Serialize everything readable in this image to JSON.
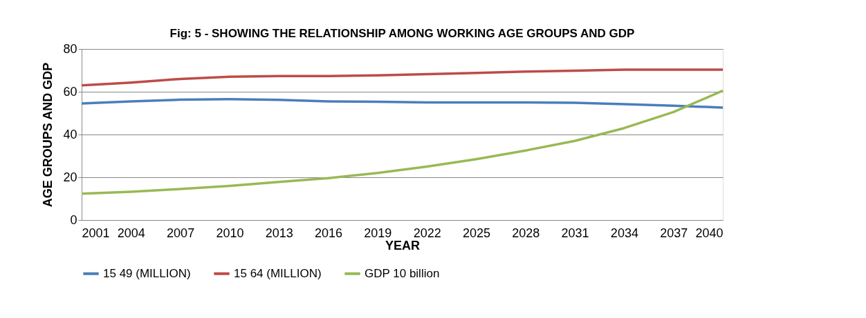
{
  "chart_data": {
    "type": "line",
    "title": "Fig: 5 - SHOWING THE RELATIONSHIP AMONG WORKING AGE GROUPS AND GDP",
    "xlabel": "YEAR",
    "ylabel": "AGE GROUPS AND GDP",
    "x": [
      2001,
      2004,
      2007,
      2010,
      2013,
      2016,
      2019,
      2022,
      2025,
      2028,
      2031,
      2034,
      2037,
      2040
    ],
    "series": [
      {
        "name": "15 49 (MILLION)",
        "color": "#4a7ebb",
        "values": [
          54.5,
          55.5,
          56.3,
          56.5,
          56.2,
          55.5,
          55.3,
          55,
          55,
          55,
          54.8,
          54.2,
          53.5,
          52.6
        ]
      },
      {
        "name": "15 64 (MILLION)",
        "color": "#be4b48",
        "values": [
          63,
          64.3,
          66,
          67,
          67.3,
          67.3,
          67.7,
          68.2,
          68.8,
          69.4,
          69.8,
          70.3,
          70.3,
          70.3
        ]
      },
      {
        "name": "GDP 10 billion",
        "color": "#98b954",
        "values": [
          12.3,
          13.2,
          14.5,
          16,
          17.8,
          19.6,
          22,
          25,
          28.5,
          32.5,
          37,
          43,
          50.5,
          60.5
        ]
      }
    ],
    "xlim": [
      2001,
      2040
    ],
    "xticks": [
      2001,
      2004,
      2007,
      2010,
      2013,
      2016,
      2019,
      2022,
      2025,
      2028,
      2031,
      2034,
      2037,
      2040
    ],
    "ylim": [
      0,
      80
    ],
    "yticks": [
      0,
      20,
      40,
      60,
      80
    ],
    "grid": "y",
    "legend": "bottom",
    "marker": "none",
    "line_style": "solid"
  }
}
